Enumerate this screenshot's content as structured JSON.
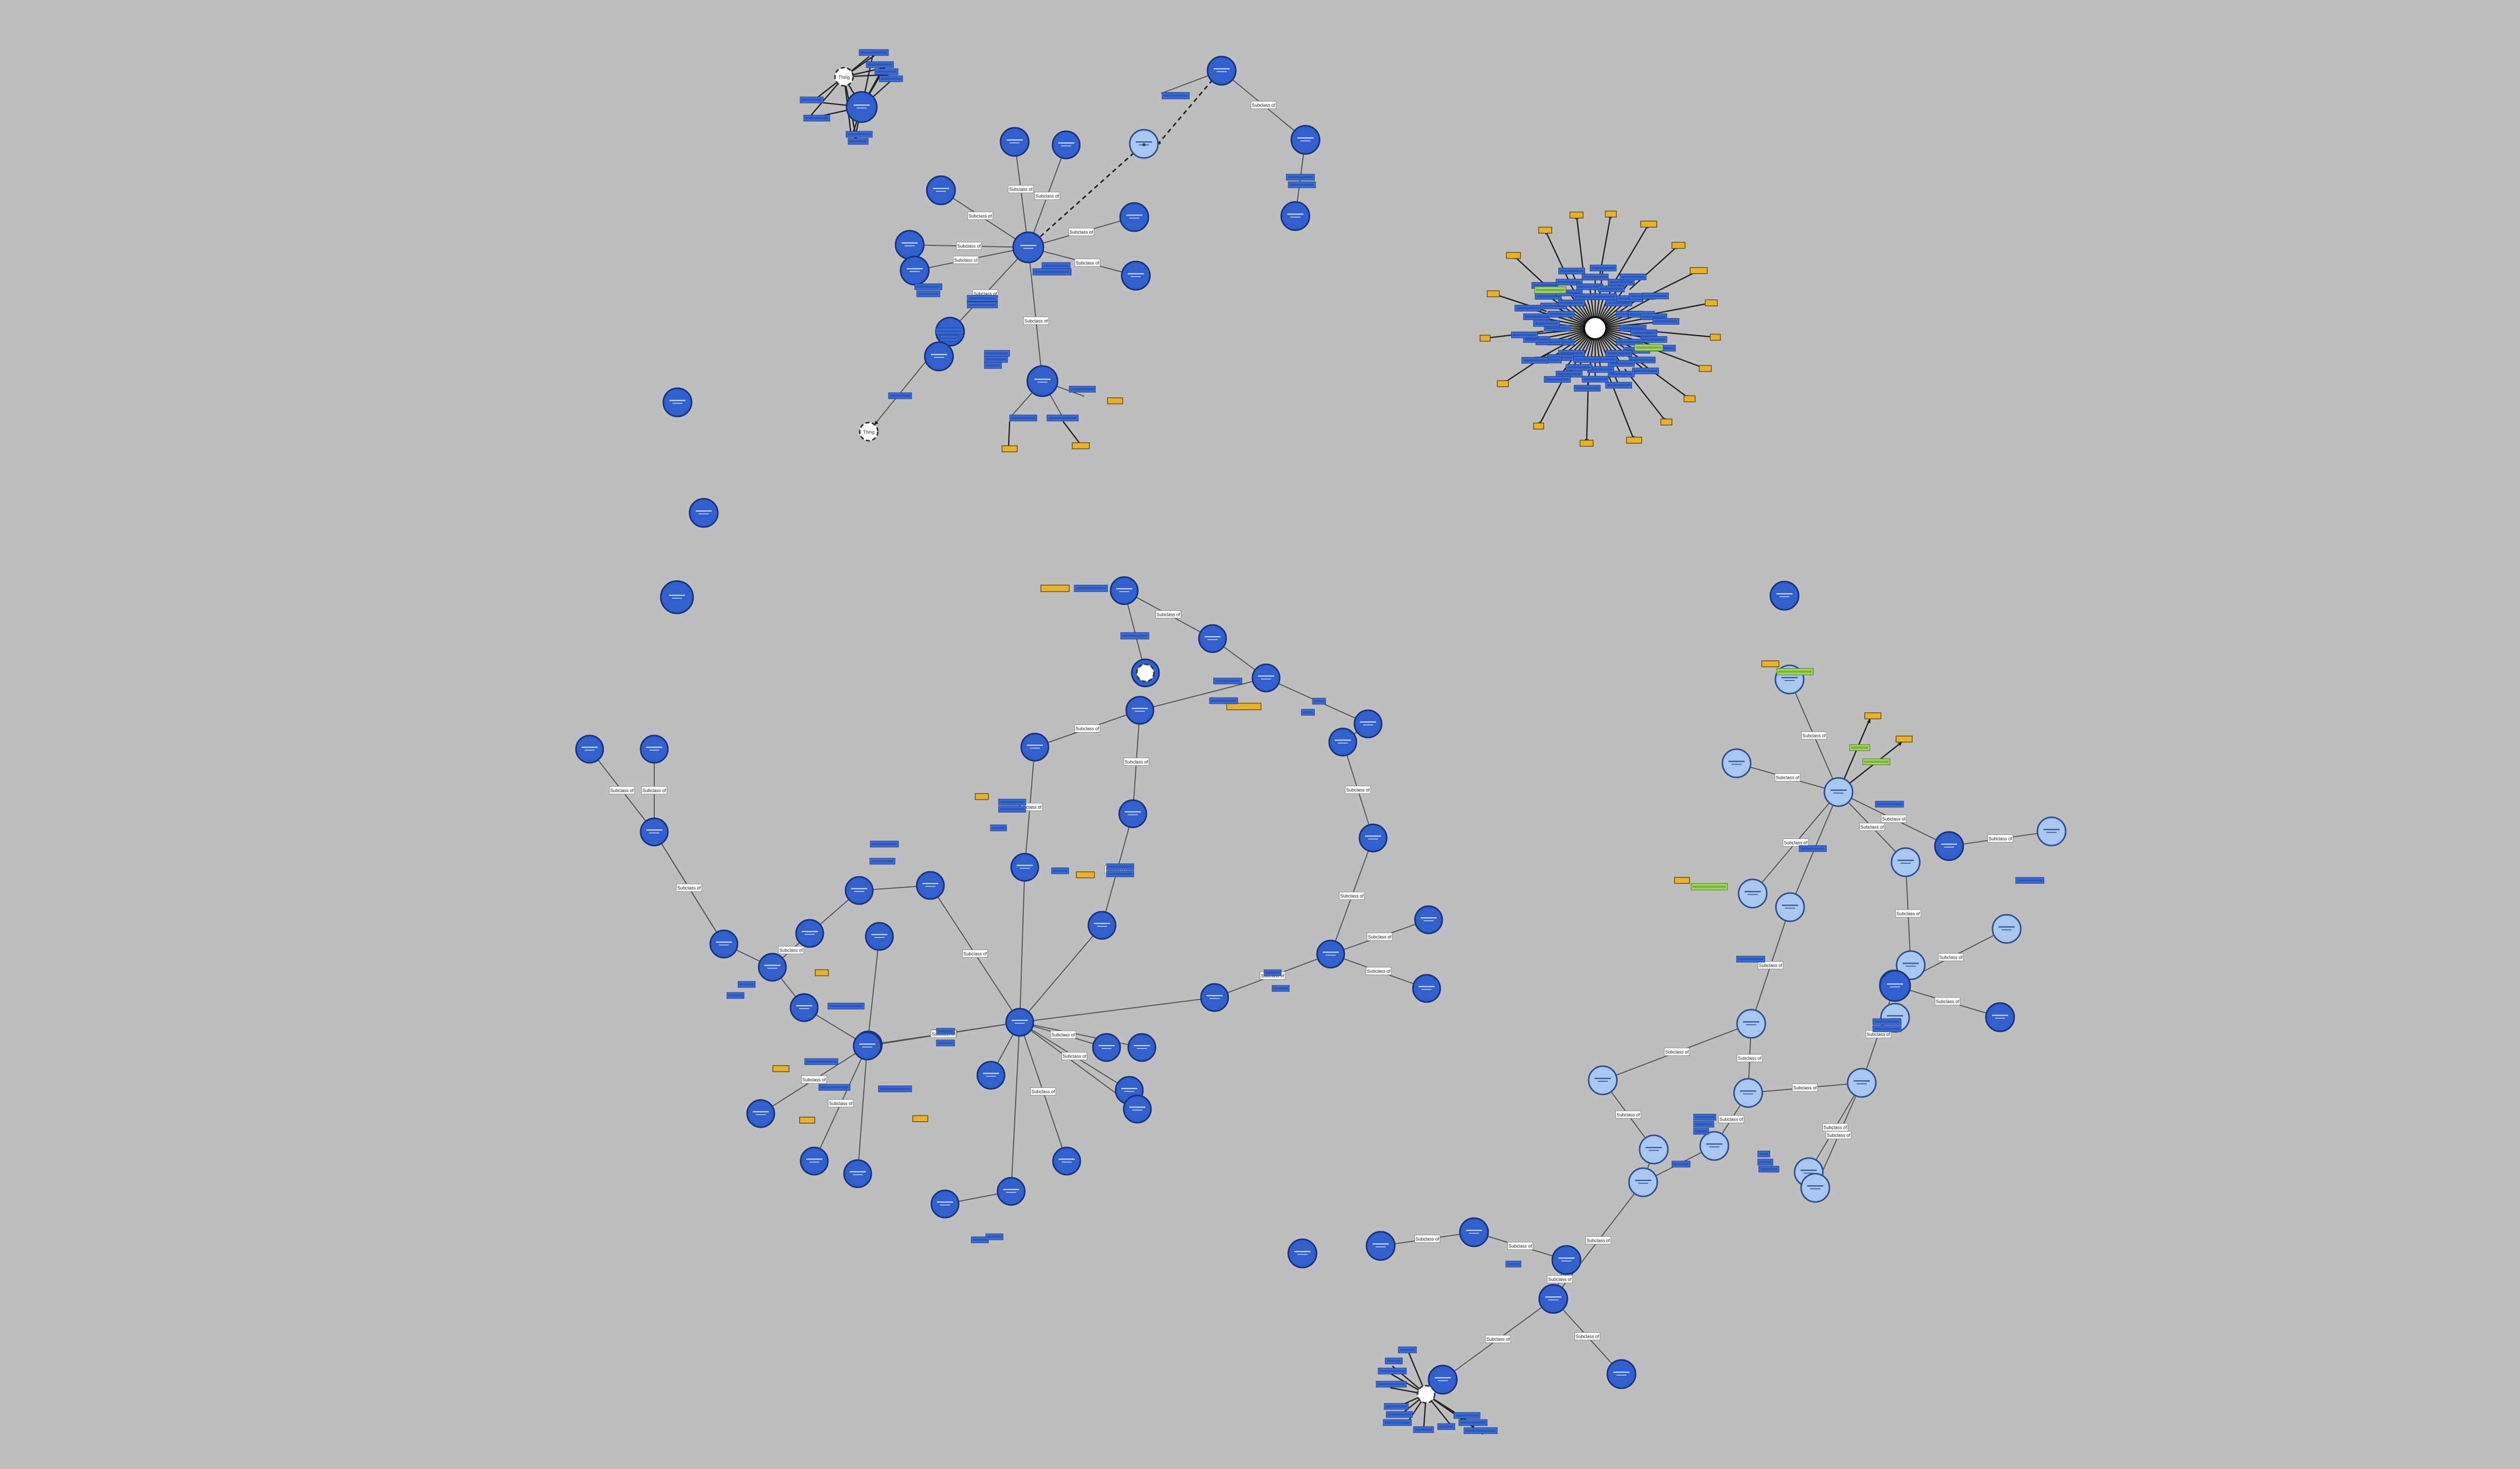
{
  "palette": {
    "background": "#bebebe",
    "node_dark": "#3160cc",
    "node_light": "#a8c6f2",
    "tag_yellow": "#e6b12e",
    "tag_green": "#9fd25a",
    "tag_blue": "#3a6ad4",
    "tag_white": "#ffffff"
  },
  "edge_label_text": "Subclass of",
  "hub_labels": {
    "eye": "◉",
    "thing": "Thing"
  }
}
